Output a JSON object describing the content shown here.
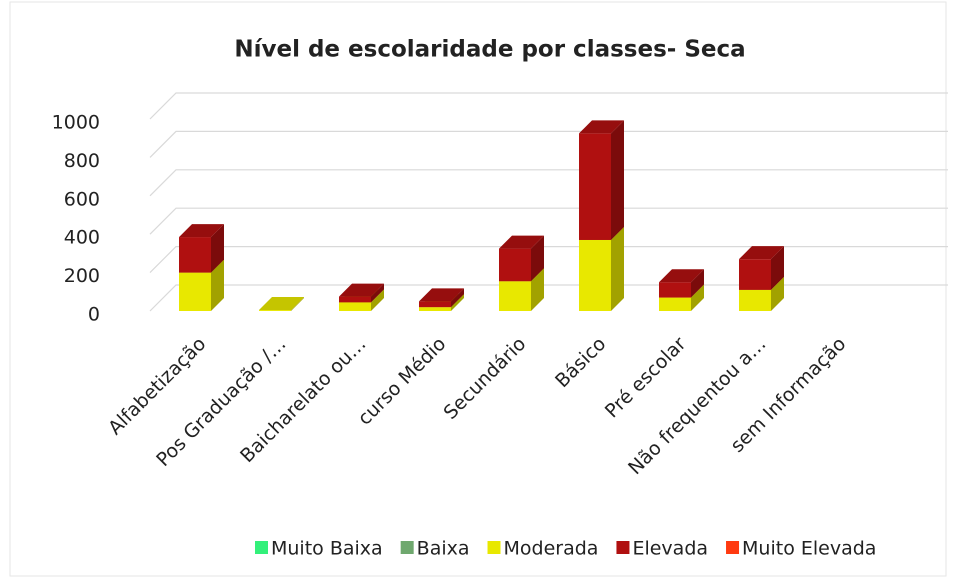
{
  "chart_data": {
    "type": "bar3d_stacked",
    "title": "Nível de escolaridade por classes- Seca",
    "categories": [
      "Alfabetização",
      "Pos Graduação /…",
      "Baicharelato ou…",
      "curso Médio",
      "Secundário",
      "Básico",
      "Pré escolar",
      "Não frequentou a…",
      "sem Informação"
    ],
    "series": [
      {
        "name": "Muito Baixa",
        "color": "#33f07a",
        "values": [
          0,
          0,
          0,
          0,
          0,
          0,
          0,
          0,
          0
        ]
      },
      {
        "name": "Baixa",
        "color": "#6fa86e",
        "values": [
          0,
          0,
          0,
          0,
          0,
          0,
          0,
          0,
          0
        ]
      },
      {
        "name": "Moderada",
        "color": "#e8e800",
        "values": [
          200,
          5,
          45,
          20,
          155,
          370,
          70,
          110,
          0
        ]
      },
      {
        "name": "Elevada",
        "color": "#b01010",
        "values": [
          185,
          0,
          30,
          30,
          170,
          555,
          80,
          160,
          0
        ]
      },
      {
        "name": "Muito Elevada",
        "color": "#ff3a10",
        "values": [
          0,
          0,
          0,
          0,
          0,
          0,
          0,
          0,
          0
        ]
      }
    ],
    "ylim": [
      0,
      1000
    ],
    "yticks": [
      0,
      200,
      400,
      600,
      800,
      1000
    ],
    "grid": true,
    "legend": "bottom"
  }
}
